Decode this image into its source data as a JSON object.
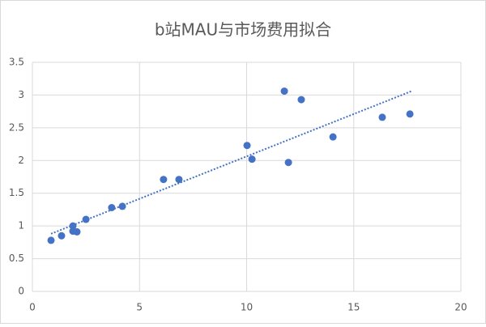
{
  "chart_data": {
    "type": "scatter",
    "title": "b站MAU与市场费用拟合",
    "x": [
      0.87,
      1.36,
      1.89,
      1.89,
      2.08,
      2.5,
      3.7,
      4.2,
      6.12,
      6.84,
      10.02,
      10.25,
      11.76,
      11.95,
      12.55,
      14.03,
      16.33,
      17.62
    ],
    "values": [
      0.78,
      0.85,
      1.0,
      0.92,
      0.91,
      1.1,
      1.28,
      1.3,
      1.71,
      1.71,
      2.23,
      2.02,
      3.06,
      1.97,
      2.93,
      2.36,
      2.66,
      2.71
    ],
    "color": "#4472c4",
    "trendline": {
      "x": [
        0.87,
        17.7
      ],
      "values": [
        0.88,
        3.06
      ],
      "color": "#4472c4",
      "style": "dotted"
    },
    "xlim": [
      0,
      20
    ],
    "xticks": [
      0,
      5,
      10,
      15,
      20
    ],
    "ylim": [
      0,
      3.5
    ],
    "yticks": [
      0,
      0.5,
      1,
      1.5,
      2,
      2.5,
      3,
      3.5
    ],
    "grid": true
  }
}
